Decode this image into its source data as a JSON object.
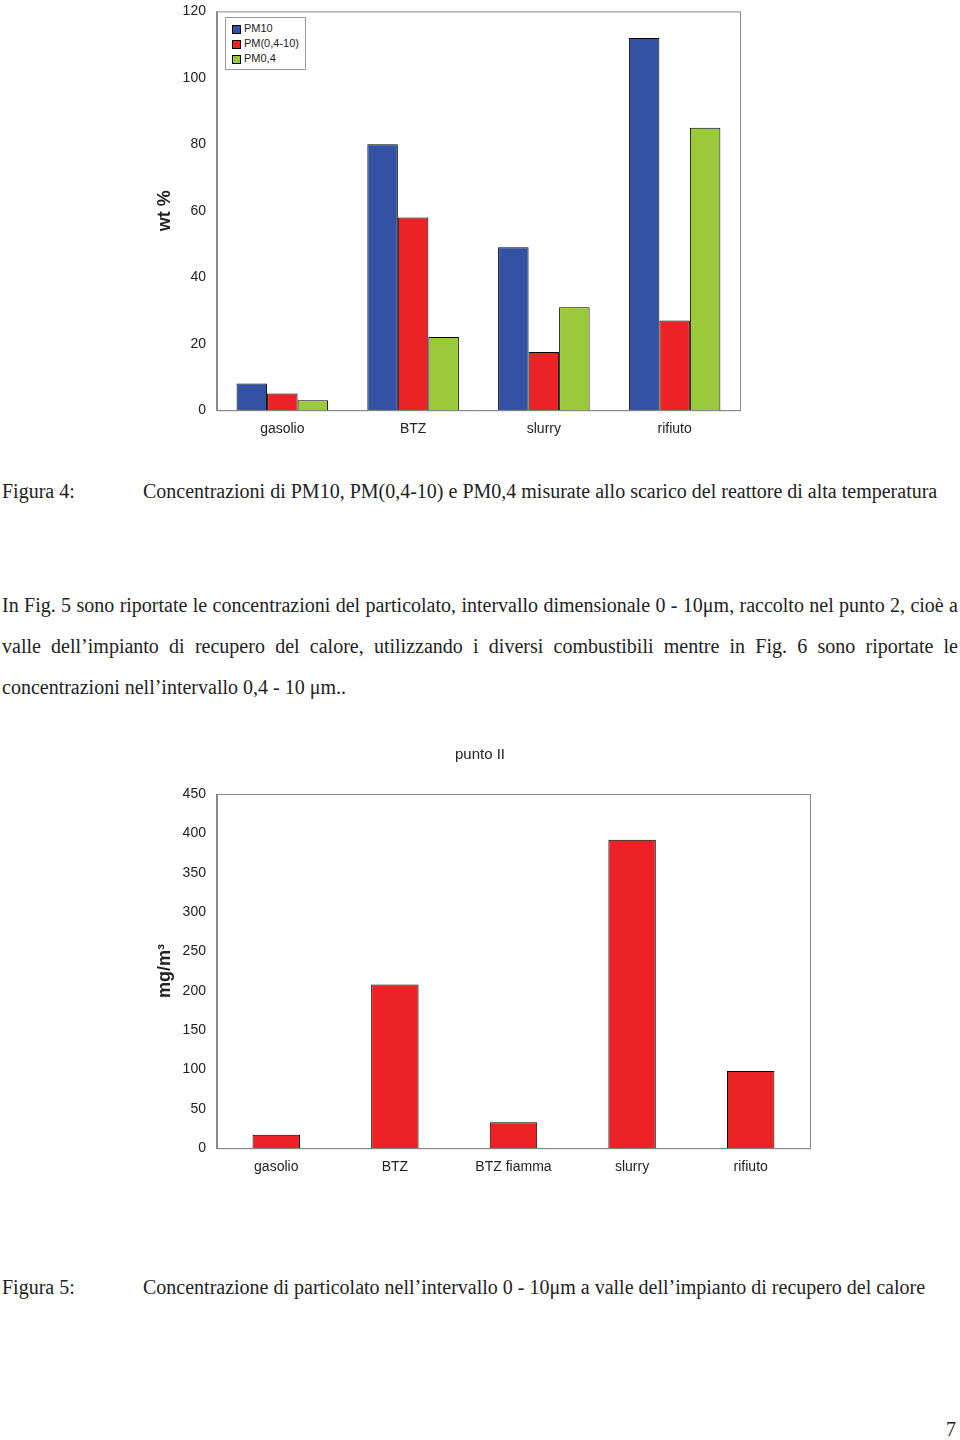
{
  "chart_data": [
    {
      "type": "bar",
      "y_label": "wt %",
      "categories": [
        "gasolio",
        "BTZ",
        "slurry",
        "rifiuto"
      ],
      "series": [
        {
          "name": "PM10",
          "color": "#3452a4",
          "values": [
            8,
            80,
            49,
            112
          ]
        },
        {
          "name": "PM(0,4-10)",
          "color": "#ec2227",
          "values": [
            5,
            58,
            17.5,
            27
          ]
        },
        {
          "name": "PM0,4",
          "color": "#9bc93c",
          "values": [
            3,
            22,
            31,
            85
          ]
        }
      ],
      "ylim": [
        0,
        120
      ],
      "yticks": [
        0,
        20,
        40,
        60,
        80,
        100,
        120
      ],
      "grid": false,
      "legend": "upper left"
    },
    {
      "type": "bar",
      "title": "punto II",
      "y_label": "mg/m³",
      "categories": [
        "gasolio",
        "BTZ",
        "BTZ fiamma",
        "slurry",
        "rifiuto"
      ],
      "values": [
        17,
        208,
        33,
        392,
        98
      ],
      "color": "#ec2227",
      "ylim": [
        0,
        450
      ],
      "yticks": [
        0,
        50,
        100,
        150,
        200,
        250,
        300,
        350,
        400,
        450
      ],
      "grid": false
    }
  ],
  "captions": [
    {
      "label": "Figura 4:",
      "text": "Concentrazioni di PM10, PM(0,4-10) e PM0,4 misurate allo scarico del reattore di alta temperatura"
    },
    {
      "label": "Figura 5:",
      "text": "Concentrazione di particolato nell’intervallo 0 - 10μm a valle dell’impianto di recupero del calore"
    }
  ],
  "paragraph": "In Fig. 5 sono riportate le concentrazioni del particolato, intervallo dimensionale 0 - 10μm, raccolto nel punto 2, cioè a valle dell’impianto di recupero del calore, utilizzando i diversi combustibili mentre in Fig. 6 sono riportate le concentrazioni nell’intervallo 0,4 - 10 μm..",
  "page_number": "7"
}
